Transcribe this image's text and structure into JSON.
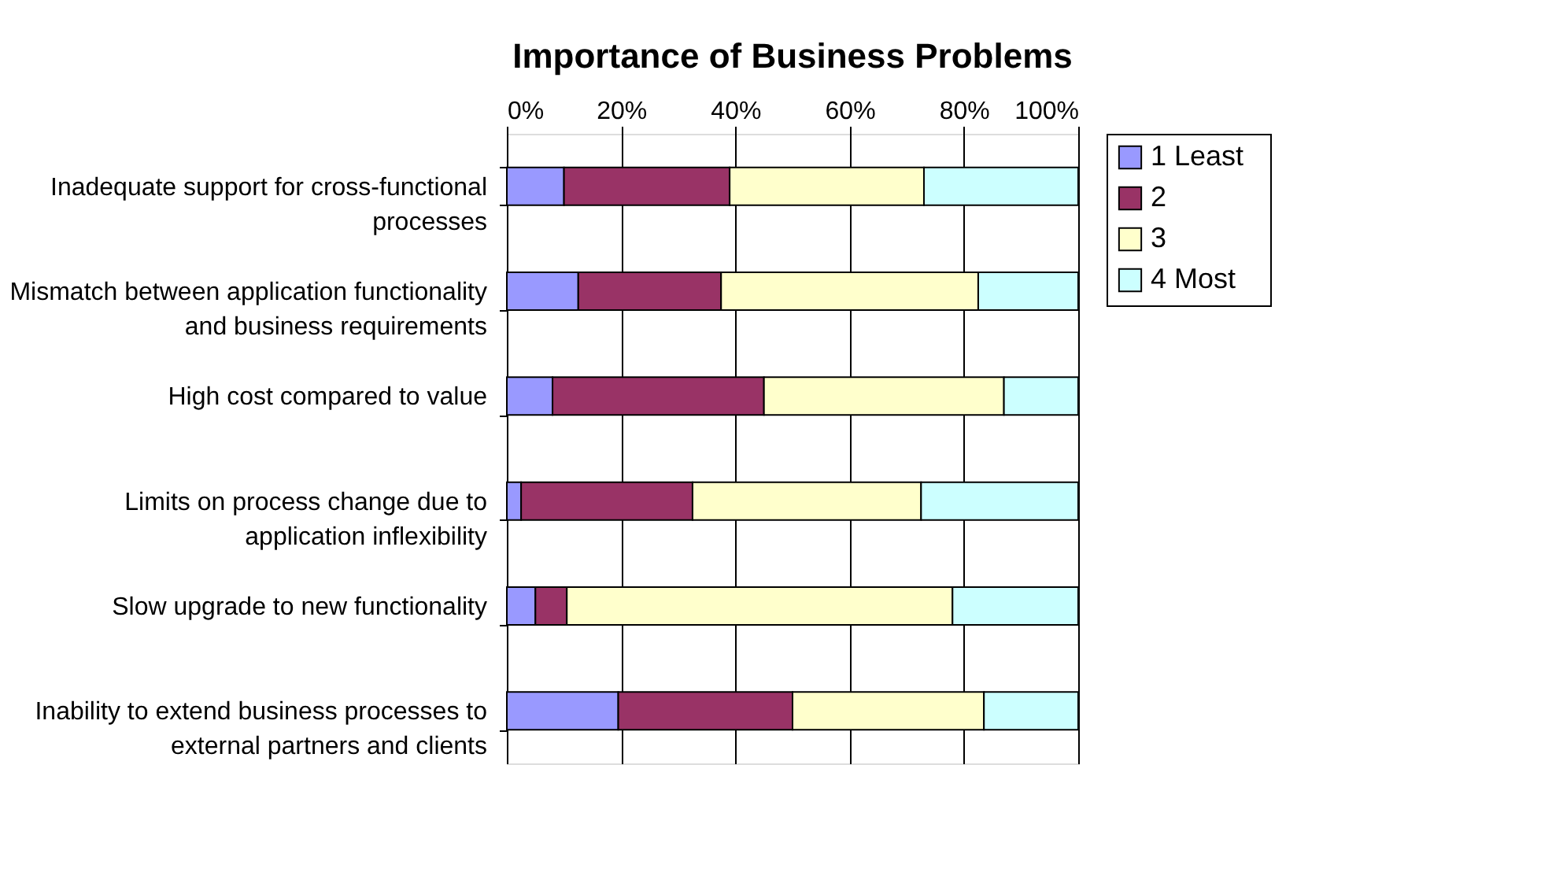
{
  "chart_data": {
    "type": "bar",
    "orientation": "horizontal",
    "stacked": true,
    "title": "Importance of Business Problems",
    "categories": [
      "Inadequate support for cross-functional processes",
      "Mismatch between application functionality and business requirements",
      "High cost compared to value",
      "Limits on process change due to application inflexibility",
      "Slow upgrade to new functionality",
      "Inability to extend business processes to external partners and clients"
    ],
    "series": [
      {
        "name": "1   Least",
        "color": "#9999ff",
        "values": [
          10,
          12.5,
          8,
          2.5,
          5,
          19.5
        ]
      },
      {
        "name": "2",
        "color": "#993366",
        "values": [
          29,
          25,
          37,
          30,
          5.5,
          30.5
        ]
      },
      {
        "name": "3",
        "color": "#ffffcc",
        "values": [
          34,
          45,
          42,
          40,
          67.5,
          33.5
        ]
      },
      {
        "name": "4   Most",
        "color": "#ccffff",
        "values": [
          27,
          17.5,
          13,
          27.5,
          22,
          16.5
        ]
      }
    ],
    "xlim": [
      0,
      100
    ],
    "xticks": [
      {
        "value": 0,
        "label": "0%"
      },
      {
        "value": 20,
        "label": "20%"
      },
      {
        "value": 40,
        "label": "40%"
      },
      {
        "value": 60,
        "label": "60%"
      },
      {
        "value": 80,
        "label": "80%"
      },
      {
        "value": 100,
        "label": "100%"
      }
    ],
    "grid": "x",
    "legend": "right"
  }
}
